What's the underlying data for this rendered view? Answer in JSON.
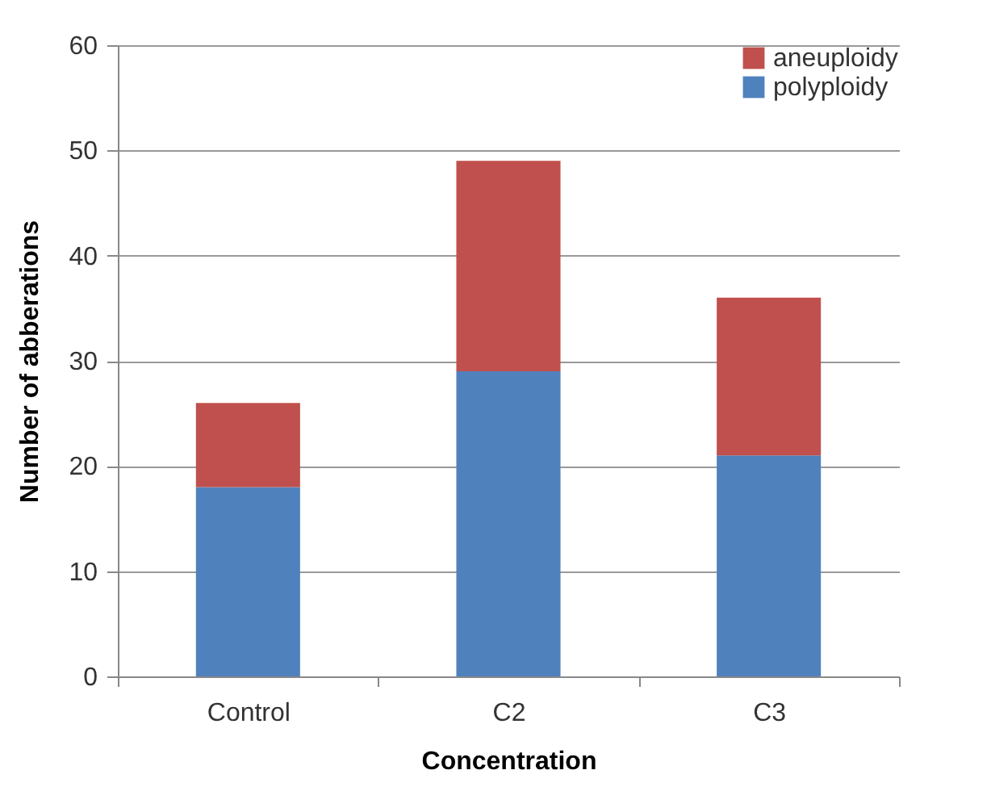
{
  "chart_data": {
    "type": "bar",
    "xlabel": "Concentration",
    "ylabel": "Number of abberations",
    "categories": [
      "Control",
      "C2",
      "C3"
    ],
    "series": [
      {
        "name": "polyploidy",
        "color": "#4f81bd",
        "values": [
          18,
          29,
          21
        ]
      },
      {
        "name": "aneuploidy",
        "color": "#c0504d",
        "values": [
          8,
          20,
          15
        ]
      }
    ],
    "stacked": true,
    "ylim": [
      0,
      60
    ],
    "yticks": [
      0,
      10,
      20,
      30,
      40,
      50,
      60
    ],
    "grid": "y",
    "legend": "top right"
  }
}
